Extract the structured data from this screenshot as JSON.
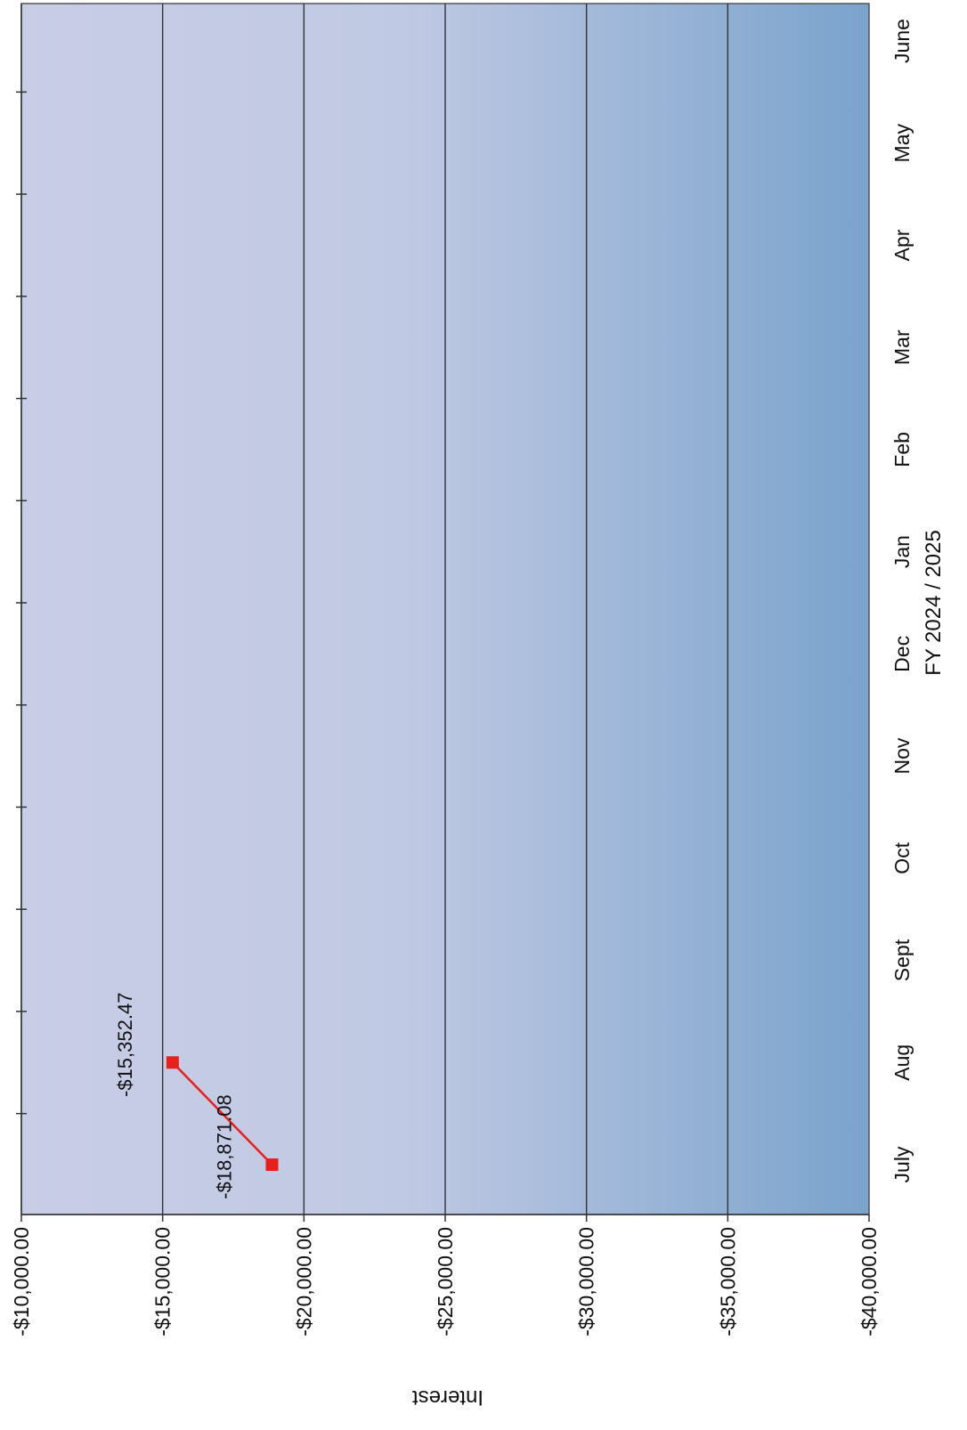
{
  "chart_data": {
    "type": "line",
    "title": "",
    "xlabel": "FY 2024 / 2025",
    "ylabel": "Interest",
    "categories": [
      "July",
      "Aug",
      "Sept",
      "Oct",
      "Nov",
      "Dec",
      "Jan",
      "Feb",
      "Mar",
      "Apr",
      "May",
      "June"
    ],
    "yticks": [
      "-$10,000.00",
      "-$15,000.00",
      "-$20,000.00",
      "-$25,000.00",
      "-$30,000.00",
      "-$35,000.00",
      "-$40,000.00"
    ],
    "ylim": [
      -40000,
      -10000
    ],
    "ytick_values": [
      -10000,
      -15000,
      -20000,
      -25000,
      -30000,
      -35000,
      -40000
    ],
    "grid": true,
    "series": [
      {
        "values": [
          -18871.08,
          -15352.47,
          null,
          null,
          null,
          null,
          null,
          null,
          null,
          null,
          null,
          null
        ],
        "data_labels": [
          "-$18,871.08",
          "-$15,352.47"
        ],
        "color": "#e8201c"
      }
    ],
    "colors": {
      "plot_top": "#7aa3cc",
      "plot_bottom": "#c9cde6",
      "gridline": "#333333",
      "series": "#e8201c"
    }
  }
}
